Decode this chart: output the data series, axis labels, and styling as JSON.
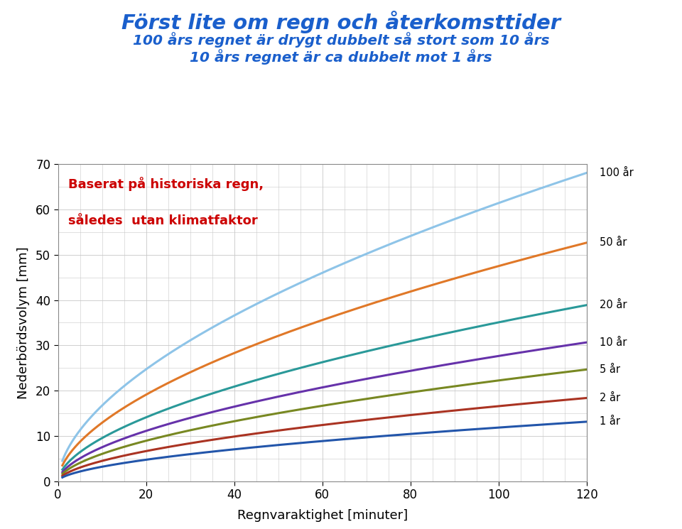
{
  "title_line1": "Först lite om regn och återkomsttider",
  "title_line2": "100 års regnet är drygt dubbelt så stort som 10 års",
  "title_line3": "10 års regnet är ca dubbelt mot 1 års",
  "annotation_line1": "Baserat på historiska regn,",
  "annotation_line2": "således  utan klimatfaktor",
  "xlabel": "Regnvaraktighet [minuter]",
  "ylabel": "Nederbördsvolym [mm]",
  "xlim": [
    0,
    120
  ],
  "ylim": [
    0,
    70
  ],
  "xticks": [
    0,
    20,
    40,
    60,
    80,
    100,
    120
  ],
  "yticks": [
    0,
    10,
    20,
    30,
    40,
    50,
    60,
    70
  ],
  "series": [
    {
      "label": "100 år",
      "color": "#8EC4E8",
      "a": 4.55,
      "b": 0.565
    },
    {
      "label": "50 år",
      "color": "#E07828",
      "a": 3.52,
      "b": 0.565
    },
    {
      "label": "20 år",
      "color": "#2A9999",
      "a": 2.6,
      "b": 0.565
    },
    {
      "label": "10 år",
      "color": "#6632AA",
      "a": 2.05,
      "b": 0.565
    },
    {
      "label": "5 år",
      "color": "#788822",
      "a": 1.65,
      "b": 0.565
    },
    {
      "label": "2 år",
      "color": "#AA3322",
      "a": 1.23,
      "b": 0.565
    },
    {
      "label": "1 år",
      "color": "#2255AA",
      "a": 0.88,
      "b": 0.565
    }
  ],
  "title_color": "#1A5FCC",
  "annotation_color": "#CC0000",
  "background_color": "#FFFFFF",
  "grid_color": "#C8C8C8"
}
